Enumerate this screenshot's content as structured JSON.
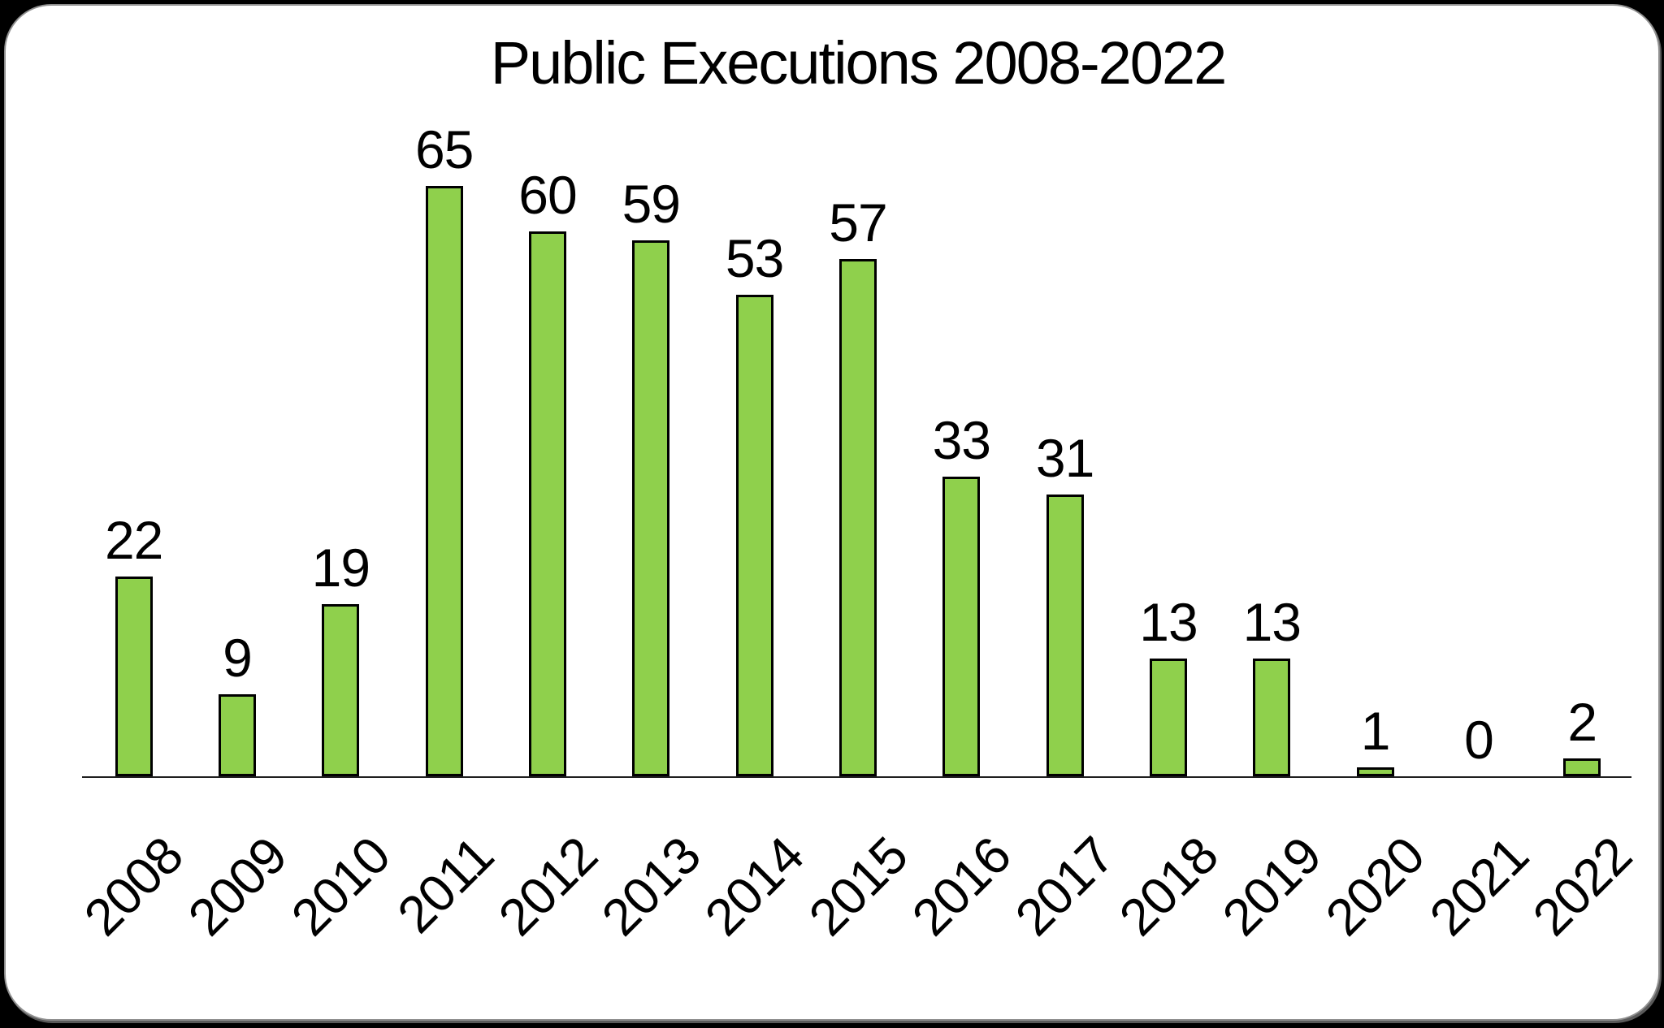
{
  "chart_data": {
    "type": "bar",
    "title": "Public Executions 2008-2022",
    "categories": [
      "2008",
      "2009",
      "2010",
      "2011",
      "2012",
      "2013",
      "2014",
      "2015",
      "2016",
      "2017",
      "2018",
      "2019",
      "2020",
      "2021",
      "2022"
    ],
    "values": [
      22,
      9,
      19,
      65,
      60,
      59,
      53,
      57,
      33,
      31,
      13,
      13,
      1,
      0,
      2
    ],
    "xlabel": "",
    "ylabel": "",
    "ylim": [
      0,
      70
    ],
    "grid": false,
    "legend_position": "none",
    "data_labels_shown": true,
    "x_tick_rotation_deg": -45,
    "colors": {
      "bar_fill": "#8FD04C",
      "bar_border": "#000000",
      "axis_line": "#1f1f1f",
      "text": "#000000",
      "card_background": "#ffffff",
      "page_background": "#000000"
    }
  }
}
